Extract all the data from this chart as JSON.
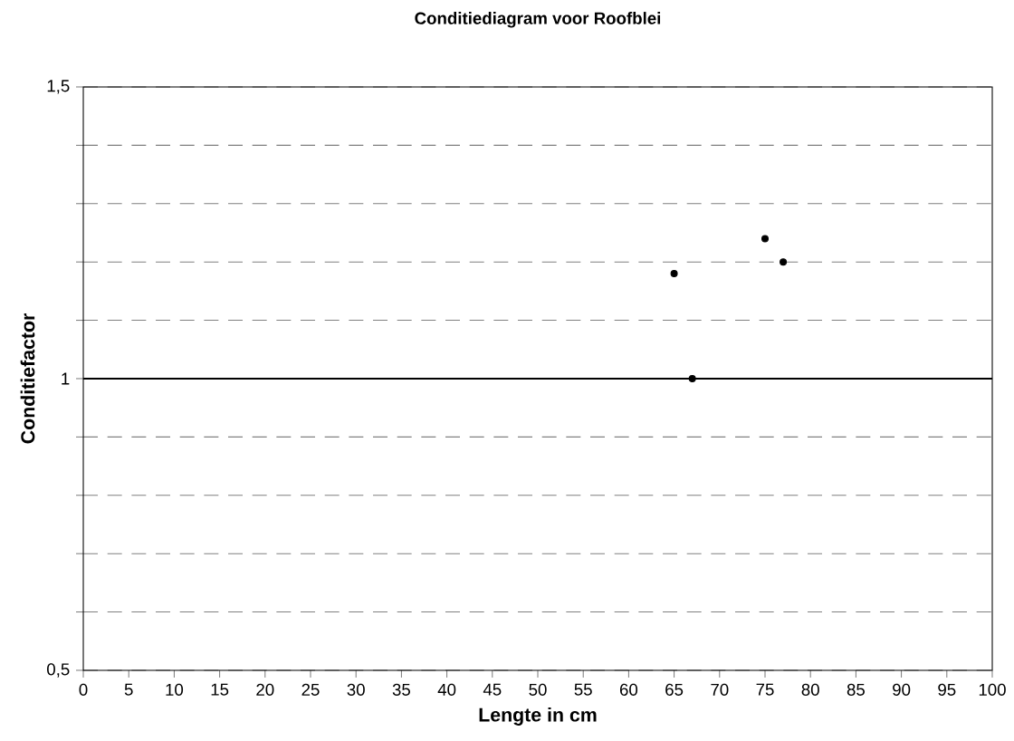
{
  "chart_data": {
    "type": "scatter",
    "title": "Conditiediagram voor Roofblei",
    "xlabel": "Lengte in cm",
    "ylabel": "Conditiefactor",
    "x": [
      65,
      67,
      75,
      77
    ],
    "series": [
      {
        "color": "#000000",
        "values": [
          1.18,
          1.0,
          1.24,
          1.2
        ]
      }
    ],
    "marker": "circle",
    "xlim": [
      0,
      100
    ],
    "ylim": [
      0.5,
      1.5
    ],
    "xticks": [
      0,
      5,
      10,
      15,
      20,
      25,
      30,
      35,
      40,
      45,
      50,
      55,
      60,
      65,
      70,
      75,
      80,
      85,
      90,
      95,
      100
    ],
    "yticks": [
      {
        "value": 0.5,
        "label": "0,5"
      },
      {
        "value": 0.6,
        "label": null
      },
      {
        "value": 0.7,
        "label": null
      },
      {
        "value": 0.8,
        "label": null
      },
      {
        "value": 0.9,
        "label": null
      },
      {
        "value": 1,
        "label": "1"
      },
      {
        "value": 1.1,
        "label": null
      },
      {
        "value": 1.2,
        "label": null
      },
      {
        "value": 1.3,
        "label": null
      },
      {
        "value": 1.4,
        "label": null
      },
      {
        "value": 1.5,
        "label": "1,5"
      }
    ],
    "grid": "y",
    "ref_lines": [
      {
        "axis": "y",
        "value": 1,
        "color": "#000000",
        "line_style": "solid"
      }
    ]
  }
}
